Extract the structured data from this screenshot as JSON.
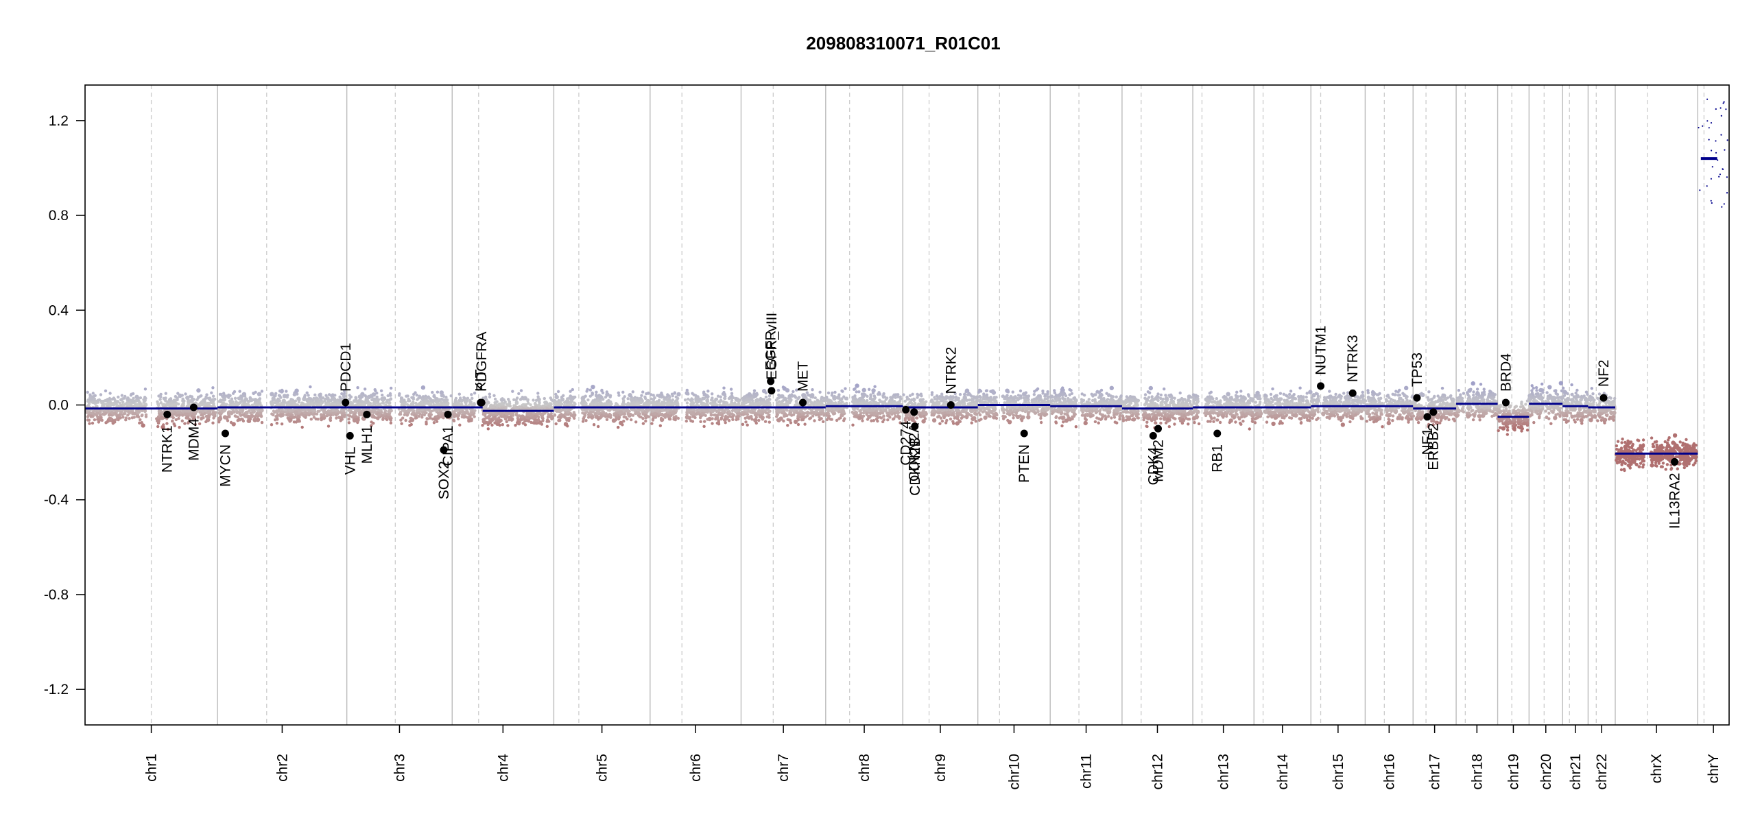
{
  "chart_data": {
    "type": "scatter",
    "title": "209808310071_R01C01",
    "xlabel": "",
    "ylabel": "",
    "ylim": [
      -1.35,
      1.35
    ],
    "yticks": [
      "1.2",
      "0.8",
      "0.4",
      "0.0",
      "-0.4",
      "-0.8",
      "-1.2"
    ],
    "ytick_values": [
      1.2,
      0.8,
      0.4,
      0.0,
      -0.4,
      -0.8,
      -1.2
    ],
    "grid": "chromosome boundary lines (solid) and centromere lines (dashed)",
    "colors": {
      "gain": "#9c9cc8",
      "neutral": "#c8c8c8",
      "loss": "#b07070",
      "segment": "#00008b",
      "boundary": "#bbbbbb",
      "centromere": "#cccccc",
      "gene": "#000000"
    },
    "chromosomes": [
      {
        "name": "chr1",
        "length": 249,
        "cen": 0.5,
        "segment": -0.015
      },
      {
        "name": "chr2",
        "length": 243,
        "cen": 0.38,
        "segment": -0.01
      },
      {
        "name": "chr3",
        "length": 198,
        "cen": 0.46,
        "segment": -0.01
      },
      {
        "name": "chr4",
        "length": 191,
        "cen": 0.26,
        "segment": -0.025,
        "pre_segment": -0.01,
        "pre_end": 0.3
      },
      {
        "name": "chr5",
        "length": 181,
        "cen": 0.26,
        "segment": -0.01
      },
      {
        "name": "chr6",
        "length": 171,
        "cen": 0.35,
        "segment": -0.01
      },
      {
        "name": "chr7",
        "length": 159,
        "cen": 0.38,
        "segment": -0.01
      },
      {
        "name": "chr8",
        "length": 145,
        "cen": 0.31,
        "segment": -0.005
      },
      {
        "name": "chr9",
        "length": 141,
        "cen": 0.35,
        "segment": -0.01
      },
      {
        "name": "chr10",
        "length": 136,
        "cen": 0.3,
        "segment": 0.0
      },
      {
        "name": "chr11",
        "length": 135,
        "cen": 0.4,
        "segment": -0.005
      },
      {
        "name": "chr12",
        "length": 133,
        "cen": 0.27,
        "segment": -0.015
      },
      {
        "name": "chr13",
        "length": 115,
        "cen": 0.15,
        "segment": -0.01
      },
      {
        "name": "chr14",
        "length": 107,
        "cen": 0.16,
        "segment": -0.01
      },
      {
        "name": "chr15",
        "length": 102,
        "cen": 0.18,
        "segment": -0.005
      },
      {
        "name": "chr16",
        "length": 90,
        "cen": 0.4,
        "segment": -0.005
      },
      {
        "name": "chr17",
        "length": 81,
        "cen": 0.3,
        "segment": -0.015
      },
      {
        "name": "chr18",
        "length": 78,
        "cen": 0.22,
        "segment": 0.005
      },
      {
        "name": "chr19",
        "length": 59,
        "cen": 0.45,
        "segment": -0.05
      },
      {
        "name": "chr20",
        "length": 63,
        "cen": 0.45,
        "segment": 0.005
      },
      {
        "name": "chr21",
        "length": 48,
        "cen": 0.27,
        "segment": -0.005
      },
      {
        "name": "chr22",
        "length": 51,
        "cen": 0.3,
        "segment": -0.01
      },
      {
        "name": "chrX",
        "length": 155,
        "cen": 0.39,
        "segment": -0.205
      },
      {
        "name": "chrY",
        "length": 59,
        "cen": 0.2,
        "segment": 1.04
      }
    ],
    "genes": [
      {
        "name": "NTRK1",
        "chr": "chr1",
        "pos": 0.62,
        "value": -0.04
      },
      {
        "name": "MDM4",
        "chr": "chr1",
        "pos": 0.82,
        "value": -0.01
      },
      {
        "name": "MYCN",
        "chr": "chr2",
        "pos": 0.06,
        "value": -0.12
      },
      {
        "name": "PDCD1",
        "chr": "chr2",
        "pos": 0.99,
        "value": 0.01
      },
      {
        "name": "VHL",
        "chr": "chr3",
        "pos": 0.03,
        "value": -0.13
      },
      {
        "name": "MLH1",
        "chr": "chr3",
        "pos": 0.19,
        "value": -0.04
      },
      {
        "name": "SOX2",
        "chr": "chr3",
        "pos": 0.92,
        "value": -0.19
      },
      {
        "name": "CIPA1",
        "chr": "chr3",
        "pos": 0.96,
        "value": -0.04
      },
      {
        "name": "KIT",
        "chr": "chr4",
        "pos": 0.28,
        "value": 0.01
      },
      {
        "name": "PDGFRA",
        "chr": "chr4",
        "pos": 0.29,
        "value": 0.01
      },
      {
        "name": "EGFR",
        "chr": "chr7",
        "pos": 0.35,
        "value": 0.1
      },
      {
        "name": "EGFR_vIII",
        "chr": "chr7",
        "pos": 0.36,
        "value": 0.06
      },
      {
        "name": "MET",
        "chr": "chr7",
        "pos": 0.73,
        "value": 0.01
      },
      {
        "name": "CD274",
        "chr": "chr9",
        "pos": 0.04,
        "value": -0.02
      },
      {
        "name": "CDKN2A",
        "chr": "chr9",
        "pos": 0.15,
        "value": -0.03
      },
      {
        "name": "CDKN2B",
        "chr": "chr9",
        "pos": 0.16,
        "value": -0.09
      },
      {
        "name": "NTRK2",
        "chr": "chr9",
        "pos": 0.64,
        "value": 0.0
      },
      {
        "name": "PTEN",
        "chr": "chr10",
        "pos": 0.64,
        "value": -0.12
      },
      {
        "name": "CDK4",
        "chr": "chr12",
        "pos": 0.44,
        "value": -0.13
      },
      {
        "name": "MDM2",
        "chr": "chr12",
        "pos": 0.51,
        "value": -0.1
      },
      {
        "name": "RB1",
        "chr": "chr13",
        "pos": 0.4,
        "value": -0.12
      },
      {
        "name": "NUTM1",
        "chr": "chr15",
        "pos": 0.18,
        "value": 0.08
      },
      {
        "name": "NTRK3",
        "chr": "chr15",
        "pos": 0.77,
        "value": 0.05
      },
      {
        "name": "TP53",
        "chr": "chr17",
        "pos": 0.09,
        "value": 0.03
      },
      {
        "name": "NF1",
        "chr": "chr17",
        "pos": 0.33,
        "value": -0.05
      },
      {
        "name": "ERBB2",
        "chr": "chr17",
        "pos": 0.47,
        "value": -0.03
      },
      {
        "name": "BRD4",
        "chr": "chr19",
        "pos": 0.26,
        "value": 0.01
      },
      {
        "name": "NF2",
        "chr": "chr22",
        "pos": 0.57,
        "value": 0.03
      },
      {
        "name": "IL13RA2",
        "chr": "chrX",
        "pos": 0.72,
        "value": -0.24
      }
    ]
  }
}
